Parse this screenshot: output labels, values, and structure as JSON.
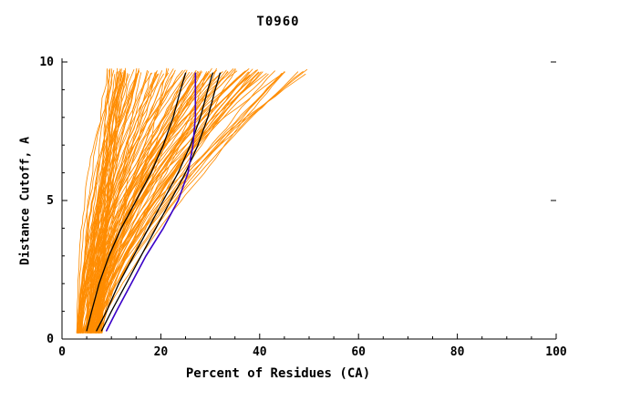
{
  "page": {
    "background": "#ffffff"
  },
  "chart_data": {
    "type": "line",
    "title": "T0960",
    "xlabel": "Percent of Residues (CA)",
    "ylabel": "Distance Cutoff, A",
    "xlim": [
      0,
      100
    ],
    "ylim": [
      0,
      10
    ],
    "x_major_ticks": [
      0,
      20,
      40,
      60,
      80,
      100
    ],
    "x_minor_step": 5,
    "y_major_ticks": [
      0,
      5,
      10
    ],
    "y_minor_step": 1,
    "grid": false,
    "legend": "none",
    "colors": {
      "ensemble": "#ff8c00",
      "highlight": "#000000",
      "best": "#3a00c8",
      "axis": "#000000"
    },
    "ensemble": {
      "name": "predicted-models-orange",
      "color": "#ff8c00",
      "count": 115,
      "seed": 7,
      "x_start_range": [
        3,
        8
      ],
      "x_top_range": [
        10,
        50
      ],
      "y_top": 9.65,
      "description": "Approximately 115 orange model cumulative-accuracy curves rising from ~3-8% of residues at cutoff 0 A to ~10-50% of residues at cutoff ~9.6 A"
    },
    "highlight_series": [
      {
        "name": "black-model-1",
        "color": "#000000",
        "width": 1.3,
        "points": [
          [
            5,
            0.3
          ],
          [
            6,
            1
          ],
          [
            7.5,
            2
          ],
          [
            9.5,
            3
          ],
          [
            12,
            4
          ],
          [
            15,
            5
          ],
          [
            18,
            6
          ],
          [
            20.5,
            7
          ],
          [
            22.5,
            8
          ],
          [
            24,
            9
          ],
          [
            25,
            9.6
          ]
        ]
      },
      {
        "name": "black-model-2",
        "color": "#000000",
        "width": 1.3,
        "points": [
          [
            7,
            0.3
          ],
          [
            9,
            1
          ],
          [
            11.5,
            2
          ],
          [
            14.5,
            3
          ],
          [
            17.5,
            4
          ],
          [
            20.5,
            5
          ],
          [
            23.5,
            6
          ],
          [
            26,
            7
          ],
          [
            28,
            8
          ],
          [
            29.5,
            9
          ],
          [
            30.5,
            9.6
          ]
        ]
      },
      {
        "name": "black-model-3",
        "color": "#000000",
        "width": 1.3,
        "points": [
          [
            8,
            0.3
          ],
          [
            10,
            1
          ],
          [
            13,
            2
          ],
          [
            16,
            3
          ],
          [
            19,
            4
          ],
          [
            22,
            5
          ],
          [
            25,
            6
          ],
          [
            27.5,
            7
          ],
          [
            29.5,
            8
          ],
          [
            31,
            9
          ],
          [
            32,
            9.6
          ]
        ]
      },
      {
        "name": "blue-model",
        "color": "#3a00c8",
        "width": 1.6,
        "points": [
          [
            9,
            0.3
          ],
          [
            11,
            1
          ],
          [
            14,
            2
          ],
          [
            17,
            3
          ],
          [
            20.5,
            4
          ],
          [
            23.5,
            5
          ],
          [
            25.5,
            6
          ],
          [
            26.5,
            7
          ],
          [
            27,
            8
          ],
          [
            27,
            9
          ],
          [
            27,
            9.6
          ]
        ]
      }
    ]
  }
}
